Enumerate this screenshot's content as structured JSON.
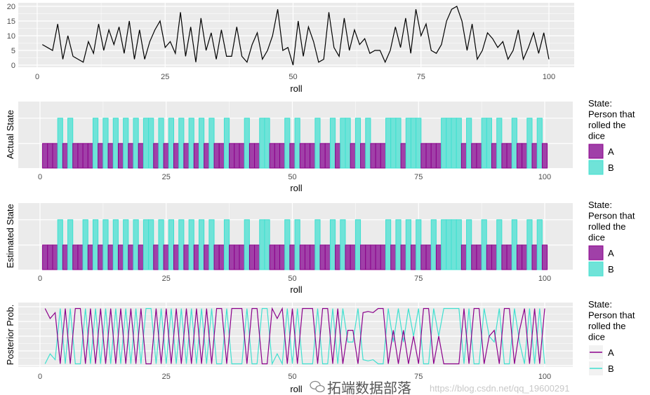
{
  "colors": {
    "A_fill": "#a040a8",
    "A_line": "#8b008b",
    "B_fill": "#6fe3d8",
    "B_line": "#40e0d0",
    "panel_bg": "#ebebeb",
    "grid": "#ffffff"
  },
  "x_ticks": [
    "0",
    "25",
    "50",
    "75",
    "100"
  ],
  "legend": {
    "title_lines": [
      "State:",
      "Person that",
      "rolled the",
      "dice"
    ],
    "A": "A",
    "B": "B"
  },
  "watermark": {
    "text": "拓端数据部落",
    "url": "https://blog.csdn.net/qq_19600291",
    "icon": "wechat-icon"
  },
  "chart_data": [
    {
      "type": "line",
      "xlabel": "roll",
      "ylabel": "",
      "xlim": [
        0,
        100
      ],
      "ylim": [
        0,
        20
      ],
      "y_ticks": [
        "0",
        "5",
        "10",
        "15",
        "20"
      ],
      "grid": true,
      "x_start": 1,
      "values": [
        7,
        6,
        5,
        14,
        2,
        10,
        3,
        2,
        1,
        8,
        4,
        14,
        5,
        12,
        7,
        13,
        4,
        15,
        2,
        12,
        2,
        8,
        12,
        15,
        6,
        8,
        4,
        18,
        3,
        13,
        1,
        16,
        5,
        11,
        2,
        12,
        3,
        3,
        13,
        3,
        1,
        7,
        11,
        2,
        5,
        10,
        19,
        5,
        6,
        0,
        15,
        3,
        13,
        8,
        1,
        2,
        18,
        6,
        3,
        16,
        5,
        12,
        7,
        9,
        4,
        5,
        5,
        1,
        5,
        13,
        6,
        16,
        4,
        19,
        10,
        14,
        5,
        4,
        7,
        15,
        19,
        20,
        15,
        5,
        14,
        2,
        5,
        11,
        9,
        6,
        8,
        2,
        5,
        12,
        2,
        6,
        11,
        4,
        11,
        2
      ]
    },
    {
      "type": "bar",
      "xlabel": "roll",
      "ylabel": "Actual State",
      "xlim": [
        0,
        100
      ],
      "grid": true,
      "legend_position": "right",
      "B_rolls": [
        4,
        6,
        11,
        13,
        15,
        17,
        19,
        21,
        22,
        24,
        26,
        28,
        30,
        32,
        34,
        37,
        41,
        44,
        45,
        49,
        51,
        55,
        58,
        60,
        61,
        63,
        65,
        69,
        70,
        71,
        73,
        74,
        75,
        80,
        81,
        82,
        83,
        85,
        88,
        89,
        91,
        94,
        97,
        99
      ]
    },
    {
      "type": "bar",
      "xlabel": "roll",
      "ylabel": "Estimated State",
      "xlim": [
        0,
        100
      ],
      "grid": true,
      "legend_position": "right",
      "B_rolls": [
        4,
        6,
        9,
        11,
        13,
        15,
        17,
        19,
        21,
        22,
        24,
        26,
        28,
        30,
        32,
        34,
        37,
        41,
        44,
        45,
        49,
        51,
        55,
        58,
        60,
        63,
        69,
        71,
        73,
        75,
        78,
        80,
        81,
        82,
        83,
        85,
        88,
        91,
        94,
        97,
        99
      ]
    },
    {
      "type": "line",
      "xlabel": "roll",
      "ylabel": "Posterior Prob.",
      "xlim": [
        0,
        100
      ],
      "ylim": [
        0,
        1
      ],
      "grid": true,
      "legend_position": "right",
      "series": [
        {
          "name": "A",
          "values": [
            0.97,
            0.8,
            0.9,
            0.03,
            0.97,
            0.03,
            0.97,
            0.97,
            0.03,
            0.97,
            0.03,
            0.97,
            0.03,
            0.97,
            0.03,
            0.97,
            0.03,
            0.97,
            0.03,
            0.97,
            0.03,
            0.03,
            0.97,
            0.03,
            0.97,
            0.03,
            0.97,
            0.03,
            0.97,
            0.03,
            0.97,
            0.03,
            0.97,
            0.03,
            0.97,
            0.97,
            0.03,
            0.97,
            0.97,
            0.97,
            0.03,
            0.97,
            0.97,
            0.03,
            0.03,
            0.97,
            0.8,
            0.97,
            0.03,
            0.97,
            0.03,
            0.97,
            0.97,
            0.97,
            0.03,
            0.97,
            0.97,
            0.03,
            0.97,
            0.03,
            0.6,
            0.6,
            0.03,
            0.9,
            0.92,
            0.9,
            0.97,
            0.97,
            0.03,
            0.6,
            0.03,
            0.6,
            0.03,
            0.5,
            0.03,
            0.97,
            0.97,
            0.03,
            0.5,
            0.03,
            0.03,
            0.03,
            0.03,
            0.97,
            0.03,
            0.97,
            0.97,
            0.03,
            0.5,
            0.6,
            0.03,
            0.97,
            0.97,
            0.03,
            0.6,
            0.97,
            0.03,
            0.97,
            0.03,
            0.97
          ]
        },
        {
          "name": "B",
          "values": [
            0.03,
            0.2,
            0.1,
            0.97,
            0.03,
            0.97,
            0.03,
            0.03,
            0.97,
            0.03,
            0.97,
            0.03,
            0.97,
            0.03,
            0.97,
            0.03,
            0.97,
            0.03,
            0.97,
            0.03,
            0.97,
            0.97,
            0.03,
            0.97,
            0.03,
            0.97,
            0.03,
            0.97,
            0.03,
            0.97,
            0.03,
            0.97,
            0.03,
            0.97,
            0.03,
            0.03,
            0.97,
            0.03,
            0.03,
            0.03,
            0.97,
            0.03,
            0.03,
            0.97,
            0.97,
            0.03,
            0.2,
            0.03,
            0.97,
            0.03,
            0.97,
            0.03,
            0.03,
            0.03,
            0.97,
            0.03,
            0.03,
            0.97,
            0.03,
            0.97,
            0.4,
            0.4,
            0.97,
            0.1,
            0.08,
            0.1,
            0.03,
            0.03,
            0.97,
            0.4,
            0.97,
            0.4,
            0.97,
            0.5,
            0.97,
            0.03,
            0.03,
            0.97,
            0.5,
            0.97,
            0.97,
            0.97,
            0.97,
            0.03,
            0.97,
            0.03,
            0.03,
            0.97,
            0.5,
            0.4,
            0.97,
            0.03,
            0.03,
            0.97,
            0.4,
            0.03,
            0.97,
            0.03,
            0.97,
            0.03
          ]
        }
      ]
    }
  ]
}
